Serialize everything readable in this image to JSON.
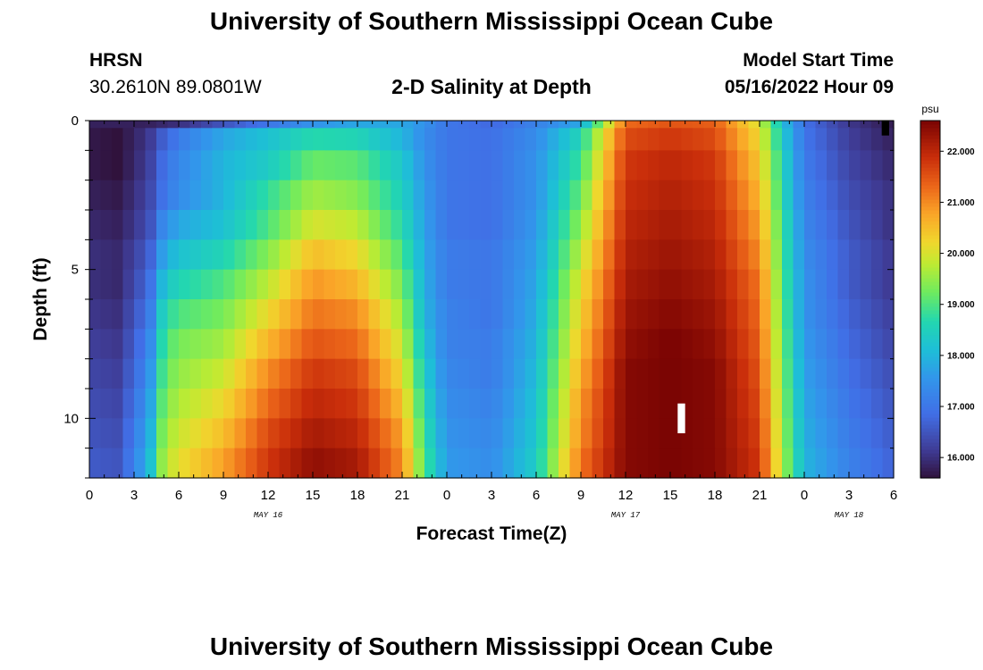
{
  "header": {
    "title": "University of Southern Mississippi Ocean Cube",
    "station": "HRSN",
    "coordinates": "30.2610N  89.0801W",
    "subtitle": "2-D Salinity at Depth",
    "model_start_label": "Model Start Time",
    "model_start_value": "05/16/2022 Hour 09"
  },
  "footer": {
    "title": "University of Southern Mississippi Ocean Cube"
  },
  "chart_data": {
    "type": "heatmap",
    "xlabel": "Forecast Time(Z)",
    "ylabel": "Depth (ft)",
    "x_tick_labels": [
      "0",
      "3",
      "6",
      "9",
      "12",
      "15",
      "18",
      "21",
      "0",
      "3",
      "6",
      "9",
      "12",
      "15",
      "18",
      "21",
      "0",
      "3",
      "6"
    ],
    "date_labels": [
      {
        "label": "MAY 16",
        "at_hour": 12
      },
      {
        "label": "MAY 17",
        "at_hour": 36
      },
      {
        "label": "MAY 18",
        "at_hour": 51
      }
    ],
    "xlim": [
      0,
      54
    ],
    "y_tick_labels": [
      "0",
      "5",
      "10"
    ],
    "y_ticks": [
      0,
      5,
      10
    ],
    "ylim": [
      0,
      12
    ],
    "y_inverted": true,
    "colorbar": {
      "unit": "psu",
      "vmin": 15.6,
      "vmax": 22.6,
      "tick_values": [
        16,
        17,
        18,
        19,
        20,
        21,
        22
      ],
      "tick_labels": [
        "16.000",
        "17.000",
        "18.000",
        "19.000",
        "20.000",
        "21.000",
        "22.000"
      ]
    },
    "depth_levels": [
      0.0,
      0.5,
      1.5,
      2.5,
      3.5,
      4.5,
      5.5,
      6.5,
      7.5,
      8.5,
      9.5,
      10.5,
      11.5
    ],
    "key_times": [
      0,
      2,
      4,
      5,
      6,
      9,
      12,
      15,
      18,
      21,
      22.5,
      24,
      27,
      30,
      33,
      36,
      39,
      42,
      45,
      46.5,
      48,
      51,
      54
    ],
    "key_values": [
      [
        15.8,
        15.8,
        15.8,
        15.9,
        16.0,
        16.5,
        17.0,
        17.5,
        17.8,
        17.8,
        17.5,
        17.0,
        16.8,
        17.2,
        17.8,
        21.3,
        21.5,
        21.4,
        20.0,
        18.2,
        16.9,
        16.1,
        15.7
      ],
      [
        15.7,
        15.6,
        16.1,
        16.7,
        17.1,
        17.8,
        18.2,
        18.7,
        18.6,
        18.0,
        17.4,
        17.0,
        16.9,
        17.4,
        18.6,
        21.6,
        21.8,
        21.6,
        20.2,
        18.4,
        17.0,
        16.2,
        15.8
      ],
      [
        15.7,
        15.6,
        16.2,
        16.9,
        17.3,
        18.0,
        18.4,
        19.2,
        19.1,
        18.3,
        17.5,
        17.0,
        16.9,
        17.5,
        18.9,
        21.8,
        22.0,
        21.8,
        20.4,
        18.6,
        17.1,
        16.3,
        15.9
      ],
      [
        15.8,
        15.7,
        16.3,
        17.0,
        17.4,
        18.0,
        18.8,
        19.6,
        19.4,
        18.5,
        17.6,
        17.0,
        16.9,
        17.5,
        19.2,
        21.9,
        22.1,
        21.9,
        20.6,
        18.7,
        17.2,
        16.4,
        16.0
      ],
      [
        15.9,
        15.8,
        16.4,
        17.4,
        17.8,
        18.2,
        19.0,
        20.0,
        19.8,
        18.7,
        17.7,
        17.0,
        16.9,
        17.6,
        19.5,
        22.0,
        22.2,
        22.0,
        20.8,
        18.9,
        17.3,
        16.5,
        16.0
      ],
      [
        16.0,
        15.9,
        16.6,
        17.8,
        18.2,
        18.6,
        19.4,
        20.5,
        20.2,
        19.0,
        17.8,
        17.1,
        17.0,
        17.7,
        19.8,
        22.1,
        22.3,
        22.1,
        21.0,
        19.0,
        17.4,
        16.6,
        16.1
      ],
      [
        16.0,
        15.9,
        16.8,
        18.2,
        18.6,
        19.0,
        19.8,
        20.9,
        20.6,
        19.3,
        17.9,
        17.1,
        17.0,
        17.8,
        20.1,
        22.2,
        22.4,
        22.2,
        21.2,
        19.1,
        17.5,
        16.6,
        16.1
      ],
      [
        16.1,
        16.0,
        17.0,
        18.6,
        19.0,
        19.3,
        20.2,
        21.2,
        21.0,
        19.6,
        18.0,
        17.2,
        17.0,
        17.9,
        20.3,
        22.3,
        22.5,
        22.3,
        21.3,
        19.2,
        17.5,
        16.7,
        16.2
      ],
      [
        16.2,
        16.1,
        17.2,
        18.9,
        19.3,
        19.6,
        20.6,
        21.5,
        21.3,
        19.9,
        18.2,
        17.2,
        17.1,
        18.0,
        20.5,
        22.4,
        22.6,
        22.4,
        21.4,
        19.3,
        17.6,
        16.8,
        16.3
      ],
      [
        16.3,
        16.2,
        17.4,
        19.1,
        19.5,
        19.9,
        21.0,
        21.8,
        21.6,
        20.2,
        18.4,
        17.3,
        17.1,
        18.1,
        20.7,
        22.5,
        22.6,
        22.5,
        21.5,
        19.4,
        17.7,
        16.9,
        16.4
      ],
      [
        16.4,
        16.3,
        17.6,
        19.3,
        19.7,
        20.2,
        21.3,
        22.0,
        21.8,
        20.5,
        18.6,
        17.4,
        17.2,
        18.2,
        20.9,
        22.5,
        22.6,
        22.5,
        21.6,
        19.5,
        17.8,
        17.0,
        16.5
      ],
      [
        16.5,
        16.4,
        17.8,
        19.5,
        19.9,
        20.5,
        21.6,
        22.2,
        22.0,
        20.8,
        18.8,
        17.5,
        17.3,
        18.3,
        21.0,
        22.5,
        22.6,
        22.5,
        21.7,
        19.6,
        17.9,
        17.1,
        16.6
      ],
      [
        16.6,
        16.5,
        18.0,
        19.7,
        20.1,
        20.8,
        21.8,
        22.4,
        22.2,
        21.0,
        19.0,
        17.6,
        17.4,
        18.4,
        21.2,
        22.5,
        22.6,
        22.5,
        21.8,
        19.7,
        18.0,
        17.2,
        16.7
      ]
    ],
    "column_hours": 0.75,
    "missing_cells": [
      {
        "hour_start": 53.2,
        "hour_end": 53.7,
        "depth_start": 0.0,
        "depth_end": 0.5
      },
      {
        "hour_start": 39.5,
        "hour_end": 40.0,
        "depth_start": 9.5,
        "depth_end": 10.5
      }
    ]
  }
}
